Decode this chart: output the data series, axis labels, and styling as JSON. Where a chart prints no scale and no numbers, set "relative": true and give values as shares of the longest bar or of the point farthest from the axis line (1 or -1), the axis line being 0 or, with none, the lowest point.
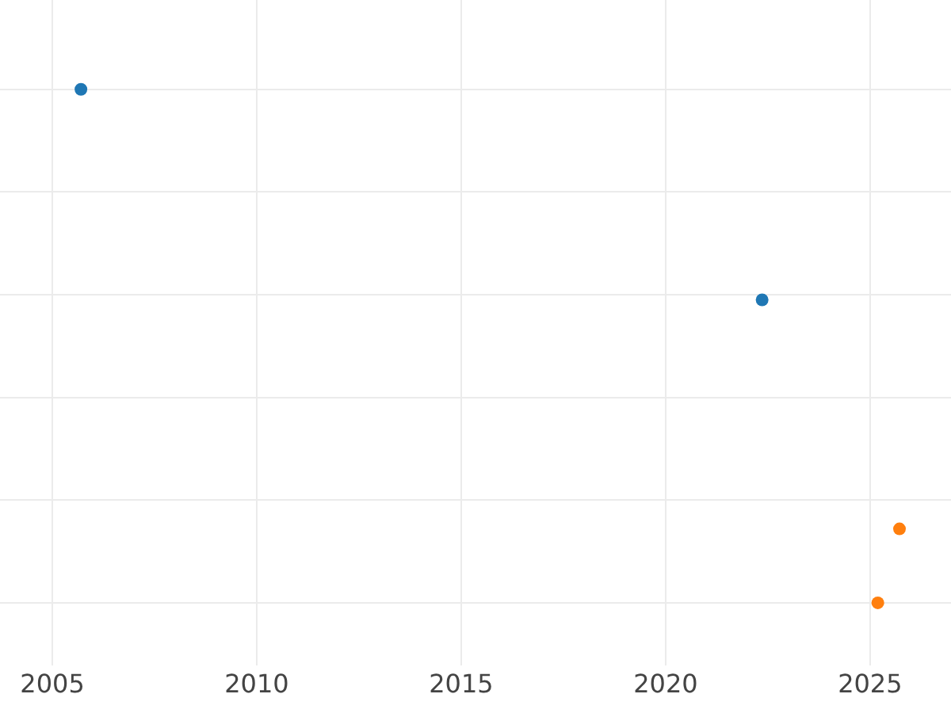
{
  "chart_data": {
    "type": "scatter",
    "relative": true,
    "xlim": [
      2003.72,
      2026.98
    ],
    "xticks": [
      2005,
      2010,
      2015,
      2020,
      2025
    ],
    "grid": true,
    "marker": "circle",
    "tick_labels": "x",
    "series": [
      {
        "color": "#1f77b4",
        "x": [
          2005.7,
          2022.36
        ],
        "values": [
          1,
          0.59
        ]
      },
      {
        "color": "#ff7f0e",
        "x": [
          2025.72,
          2025.19
        ],
        "values": [
          0.144,
          0
        ]
      }
    ]
  }
}
